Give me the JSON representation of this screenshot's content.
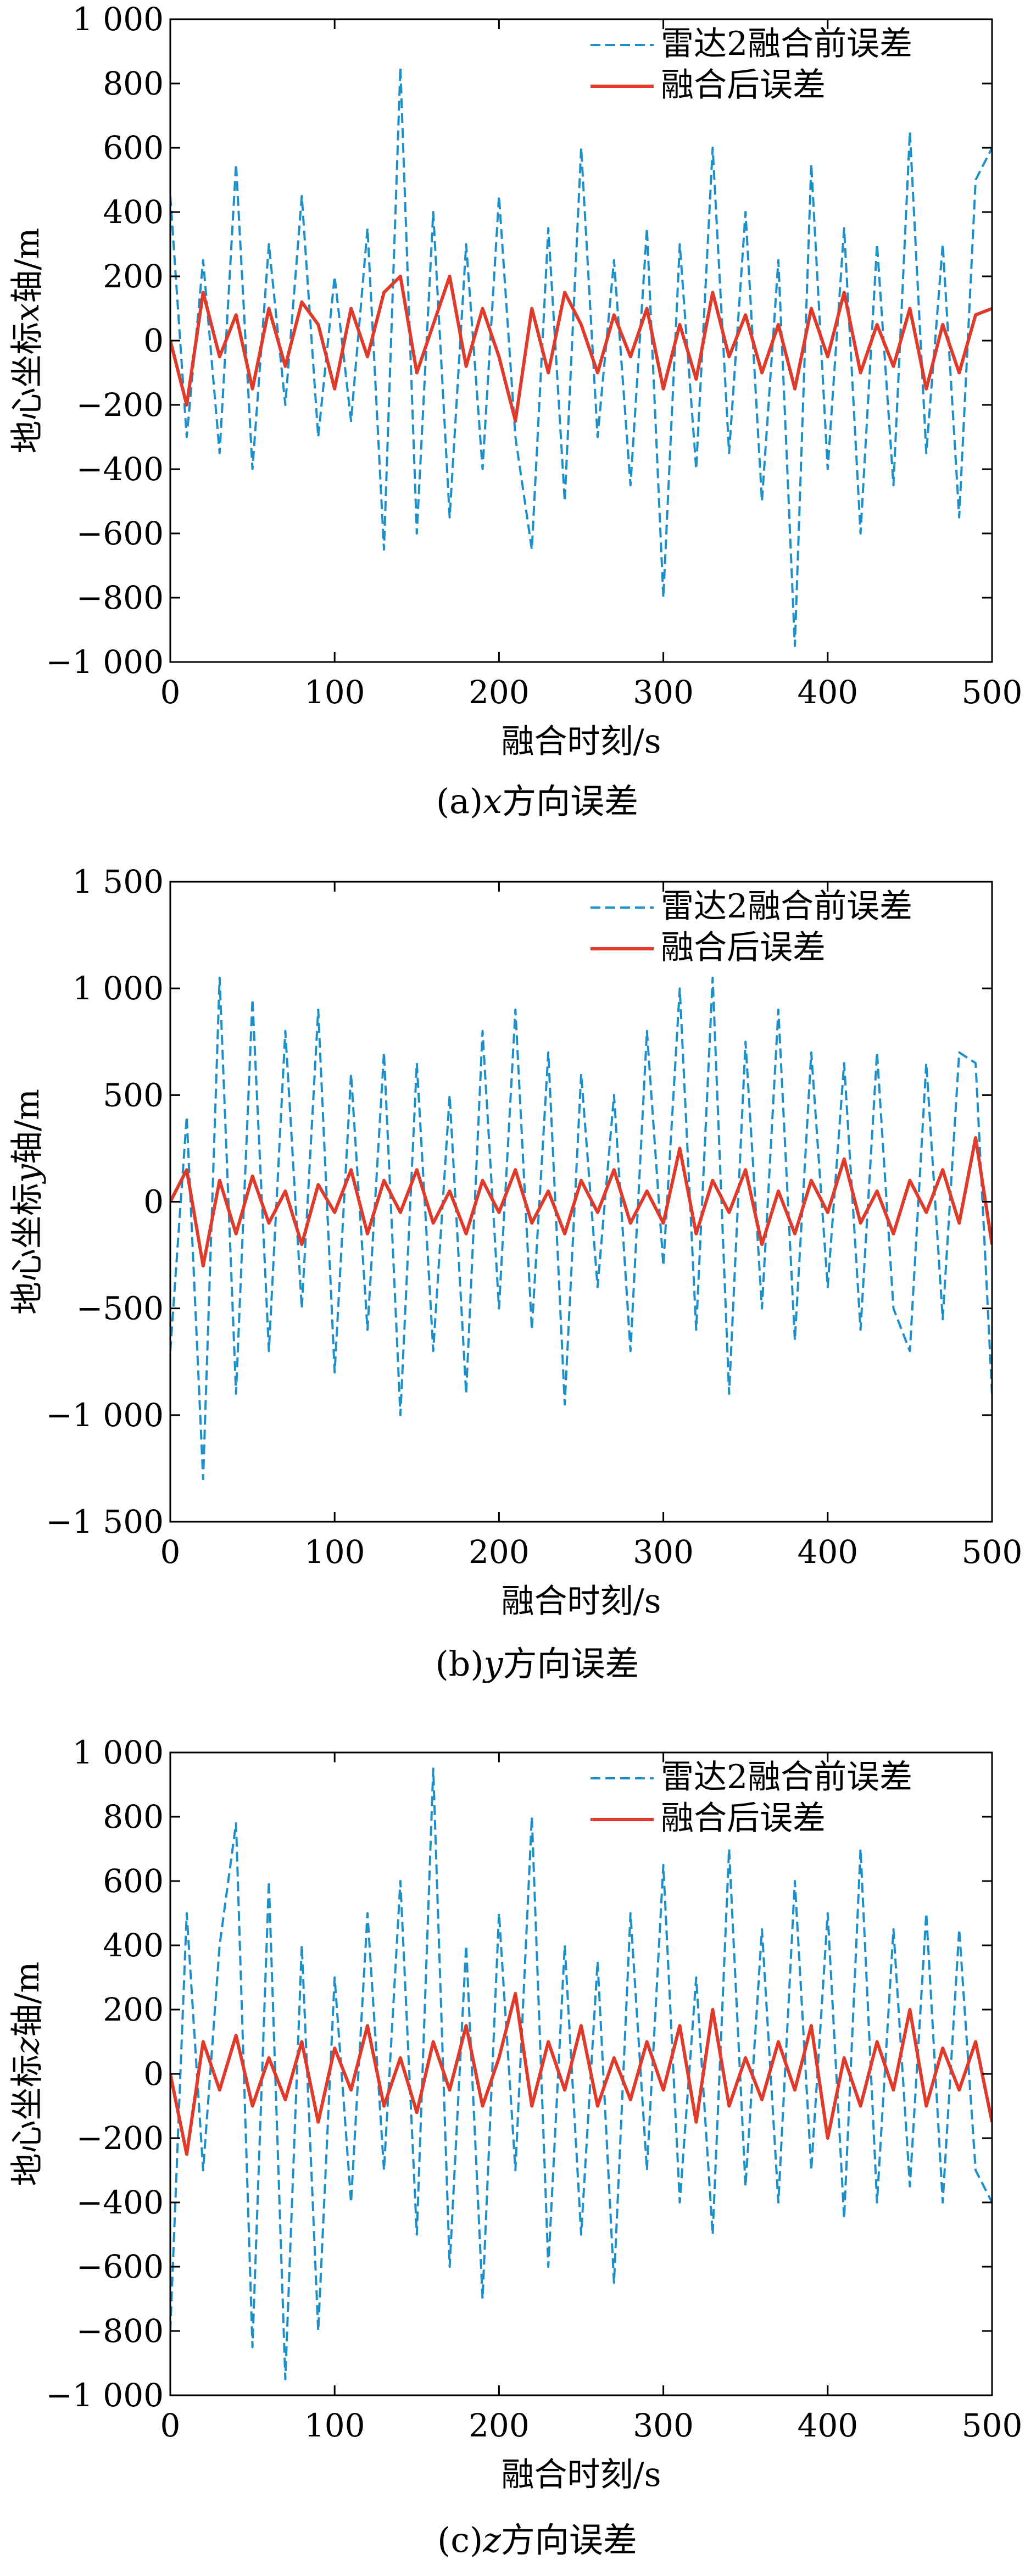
{
  "chart_data": [
    {
      "type": "line",
      "caption_prefix": "(a)",
      "caption_var": "x",
      "caption_suffix": "方向误差",
      "xlabel": "融合时刻/s",
      "ylabel_prefix": "地心坐标",
      "ylabel_var": "x",
      "ylabel_suffix": "轴/m",
      "xlim": [
        0,
        500
      ],
      "ylim": [
        -1000,
        1000
      ],
      "xticks": [
        0,
        100,
        200,
        300,
        400,
        500
      ],
      "xtick_labels": [
        "0",
        "100",
        "200",
        "300",
        "400",
        "500"
      ],
      "yticks": [
        -1000,
        -800,
        -600,
        -400,
        -200,
        0,
        200,
        400,
        600,
        800,
        1000
      ],
      "ytick_labels": [
        "−1 000",
        "−800",
        "−600",
        "−400",
        "−200",
        "0",
        "200",
        "400",
        "600",
        "800",
        "1 000"
      ],
      "legend_position": "top-right",
      "series": [
        {
          "name": "雷达2融合前误差",
          "color": "#1a8fc9",
          "style": "dashed",
          "x": [
            0,
            10,
            20,
            30,
            40,
            50,
            60,
            70,
            80,
            90,
            100,
            110,
            120,
            130,
            140,
            150,
            160,
            170,
            180,
            190,
            200,
            210,
            220,
            230,
            240,
            250,
            260,
            270,
            280,
            290,
            300,
            310,
            320,
            330,
            340,
            350,
            360,
            370,
            380,
            390,
            400,
            410,
            420,
            430,
            440,
            450,
            460,
            470,
            480,
            490,
            500
          ],
          "y": [
            450,
            -300,
            250,
            -350,
            550,
            -400,
            300,
            -200,
            450,
            -300,
            200,
            -250,
            350,
            -650,
            850,
            -600,
            400,
            -550,
            300,
            -400,
            450,
            -300,
            -650,
            350,
            -500,
            600,
            -300,
            250,
            -450,
            350,
            -800,
            300,
            -400,
            600,
            -350,
            400,
            -500,
            250,
            -950,
            550,
            -400,
            350,
            -600,
            300,
            -450,
            650,
            -350,
            300,
            -550,
            500,
            600
          ]
        },
        {
          "name": "融合后误差",
          "color": "#e03a2a",
          "style": "solid",
          "x": [
            0,
            10,
            20,
            30,
            40,
            50,
            60,
            70,
            80,
            90,
            100,
            110,
            120,
            130,
            140,
            150,
            160,
            170,
            180,
            190,
            200,
            210,
            220,
            230,
            240,
            250,
            260,
            270,
            280,
            290,
            300,
            310,
            320,
            330,
            340,
            350,
            360,
            370,
            380,
            390,
            400,
            410,
            420,
            430,
            440,
            450,
            460,
            470,
            480,
            490,
            500
          ],
          "y": [
            0,
            -200,
            150,
            -50,
            80,
            -150,
            100,
            -80,
            120,
            50,
            -150,
            100,
            -50,
            150,
            200,
            -100,
            50,
            200,
            -80,
            100,
            -50,
            -250,
            100,
            -100,
            150,
            50,
            -100,
            80,
            -50,
            100,
            -150,
            50,
            -120,
            150,
            -50,
            80,
            -100,
            50,
            -150,
            100,
            -50,
            150,
            -100,
            50,
            -80,
            100,
            -150,
            50,
            -100,
            80,
            100
          ]
        }
      ]
    },
    {
      "type": "line",
      "caption_prefix": "(b)",
      "caption_var": "y",
      "caption_suffix": "方向误差",
      "xlabel": "融合时刻/s",
      "ylabel_prefix": "地心坐标",
      "ylabel_var": "y",
      "ylabel_suffix": "轴/m",
      "xlim": [
        0,
        500
      ],
      "ylim": [
        -1500,
        1500
      ],
      "xticks": [
        0,
        100,
        200,
        300,
        400,
        500
      ],
      "xtick_labels": [
        "0",
        "100",
        "200",
        "300",
        "400",
        "500"
      ],
      "yticks": [
        -1500,
        -1000,
        -500,
        0,
        500,
        1000,
        1500
      ],
      "ytick_labels": [
        "−1 500",
        "−1 000",
        "−500",
        "0",
        "500",
        "1 000",
        "1 500"
      ],
      "legend_position": "top-right",
      "series": [
        {
          "name": "雷达2融合前误差",
          "color": "#1a8fc9",
          "style": "dashed",
          "x": [
            0,
            10,
            20,
            30,
            40,
            50,
            60,
            70,
            80,
            90,
            100,
            110,
            120,
            130,
            140,
            150,
            160,
            170,
            180,
            190,
            200,
            210,
            220,
            230,
            240,
            250,
            260,
            270,
            280,
            290,
            300,
            310,
            320,
            330,
            340,
            350,
            360,
            370,
            380,
            390,
            400,
            410,
            420,
            430,
            440,
            450,
            460,
            470,
            480,
            490,
            500
          ],
          "y": [
            -700,
            400,
            -1300,
            1050,
            -900,
            950,
            -700,
            800,
            -500,
            900,
            -800,
            600,
            -600,
            700,
            -1000,
            650,
            -700,
            500,
            -900,
            800,
            -500,
            900,
            -600,
            700,
            -950,
            600,
            -400,
            500,
            -700,
            800,
            -300,
            1000,
            -600,
            1050,
            -900,
            750,
            -500,
            900,
            -650,
            700,
            -400,
            650,
            -600,
            700,
            -500,
            -700,
            650,
            -550,
            700,
            650,
            -900
          ]
        },
        {
          "name": "融合后误差",
          "color": "#e03a2a",
          "style": "solid",
          "x": [
            0,
            10,
            20,
            30,
            40,
            50,
            60,
            70,
            80,
            90,
            100,
            110,
            120,
            130,
            140,
            150,
            160,
            170,
            180,
            190,
            200,
            210,
            220,
            230,
            240,
            250,
            260,
            270,
            280,
            290,
            300,
            310,
            320,
            330,
            340,
            350,
            360,
            370,
            380,
            390,
            400,
            410,
            420,
            430,
            440,
            450,
            460,
            470,
            480,
            490,
            500
          ],
          "y": [
            0,
            150,
            -300,
            100,
            -150,
            120,
            -100,
            50,
            -200,
            80,
            -50,
            150,
            -150,
            100,
            -50,
            150,
            -100,
            50,
            -150,
            100,
            -50,
            150,
            -100,
            50,
            -150,
            100,
            -50,
            150,
            -100,
            50,
            -100,
            250,
            -150,
            100,
            -50,
            150,
            -200,
            50,
            -150,
            100,
            -50,
            200,
            -100,
            50,
            -150,
            100,
            -50,
            150,
            -100,
            300,
            -200
          ]
        }
      ]
    },
    {
      "type": "line",
      "caption_prefix": "(c)",
      "caption_var": "z",
      "caption_suffix": "方向误差",
      "xlabel": "融合时刻/s",
      "ylabel_prefix": "地心坐标",
      "ylabel_var": "z",
      "ylabel_suffix": "轴/m",
      "xlim": [
        0,
        500
      ],
      "ylim": [
        -1000,
        1000
      ],
      "xticks": [
        0,
        100,
        200,
        300,
        400,
        500
      ],
      "xtick_labels": [
        "0",
        "100",
        "200",
        "300",
        "400",
        "500"
      ],
      "yticks": [
        -1000,
        -800,
        -600,
        -400,
        -200,
        0,
        200,
        400,
        600,
        800,
        1000
      ],
      "ytick_labels": [
        "−1 000",
        "−800",
        "−600",
        "−400",
        "−200",
        "0",
        "200",
        "400",
        "600",
        "800",
        "1 000"
      ],
      "legend_position": "top-right",
      "series": [
        {
          "name": "雷达2融合前误差",
          "color": "#1a8fc9",
          "style": "dashed",
          "x": [
            0,
            10,
            20,
            30,
            40,
            50,
            60,
            70,
            80,
            90,
            100,
            110,
            120,
            130,
            140,
            150,
            160,
            170,
            180,
            190,
            200,
            210,
            220,
            230,
            240,
            250,
            260,
            270,
            280,
            290,
            300,
            310,
            320,
            330,
            340,
            350,
            360,
            370,
            380,
            390,
            400,
            410,
            420,
            430,
            440,
            450,
            460,
            470,
            480,
            490,
            500
          ],
          "y": [
            -800,
            500,
            -300,
            400,
            780,
            -850,
            600,
            -950,
            400,
            -800,
            300,
            -400,
            500,
            -300,
            600,
            -500,
            950,
            -600,
            400,
            -700,
            500,
            -300,
            800,
            -600,
            400,
            -500,
            350,
            -650,
            500,
            -300,
            650,
            -400,
            300,
            -500,
            700,
            -350,
            450,
            -400,
            600,
            -300,
            500,
            -450,
            700,
            -400,
            450,
            -350,
            500,
            -400,
            450,
            -300,
            -400
          ]
        },
        {
          "name": "融合后误差",
          "color": "#e03a2a",
          "style": "solid",
          "x": [
            0,
            10,
            20,
            30,
            40,
            50,
            60,
            70,
            80,
            90,
            100,
            110,
            120,
            130,
            140,
            150,
            160,
            170,
            180,
            190,
            200,
            210,
            220,
            230,
            240,
            250,
            260,
            270,
            280,
            290,
            300,
            310,
            320,
            330,
            340,
            350,
            360,
            370,
            380,
            390,
            400,
            410,
            420,
            430,
            440,
            450,
            460,
            470,
            480,
            490,
            500
          ],
          "y": [
            0,
            -250,
            100,
            -50,
            120,
            -100,
            50,
            -80,
            100,
            -150,
            80,
            -50,
            150,
            -100,
            50,
            -120,
            100,
            -50,
            150,
            -100,
            50,
            250,
            -100,
            100,
            -50,
            150,
            -100,
            50,
            -80,
            100,
            -50,
            150,
            -150,
            200,
            -100,
            50,
            -80,
            100,
            -50,
            150,
            -200,
            50,
            -100,
            100,
            -50,
            200,
            -100,
            80,
            -50,
            100,
            -150
          ]
        }
      ]
    }
  ]
}
